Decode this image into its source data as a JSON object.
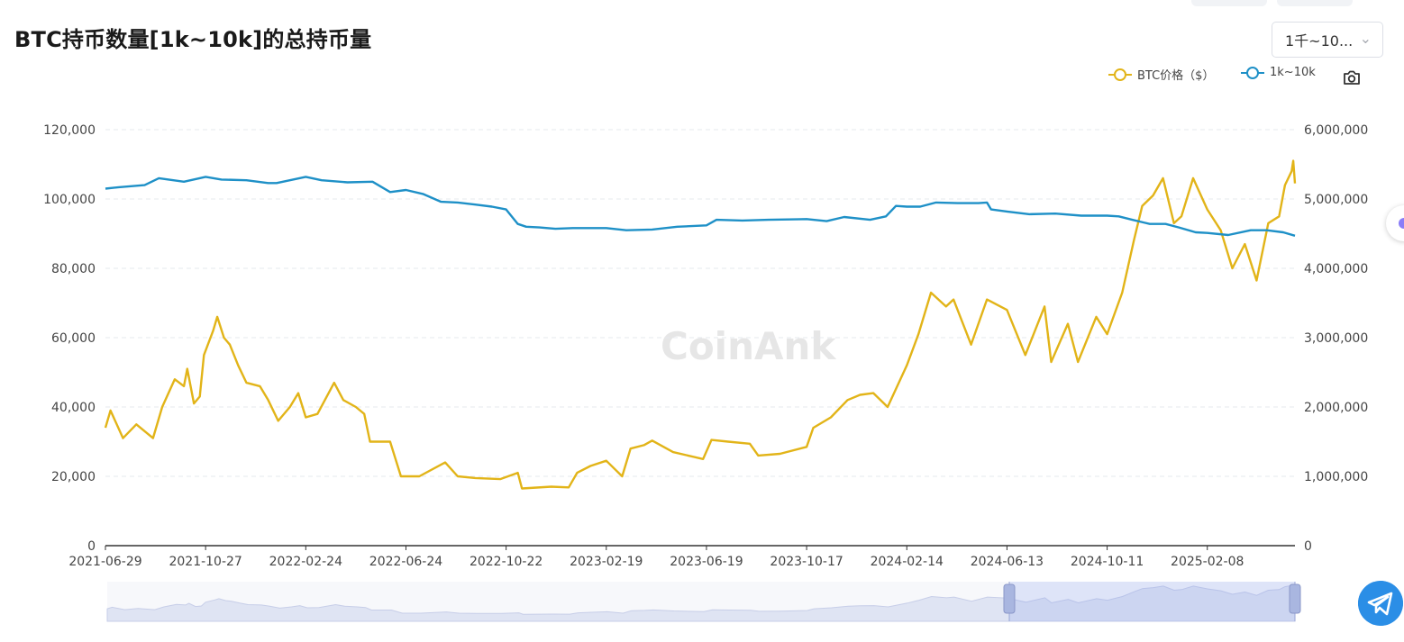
{
  "title": "BTC持币数量[1k~10k]的总持币量",
  "range_select": {
    "value": "1千~10...",
    "icon": "chevron-down-icon"
  },
  "legend": [
    {
      "label": "BTC价格（$）",
      "color": "#e2b418"
    },
    {
      "label": "1k~10k",
      "color": "#1e90c7"
    }
  ],
  "watermark": "CoinAnk",
  "chart_data": {
    "type": "line",
    "x_axis": {
      "type": "date",
      "range": [
        "2021-06-29",
        "2025-05-24"
      ],
      "tick_labels": [
        "2021-06-29",
        "2021-10-27",
        "2022-02-24",
        "2022-06-24",
        "2022-10-22",
        "2023-02-19",
        "2023-06-19",
        "2023-10-17",
        "2024-02-14",
        "2024-06-13",
        "2024-10-11",
        "2025-02-08"
      ]
    },
    "y_left": {
      "range": [
        0,
        120000
      ],
      "tick_labels": [
        "0",
        "20,000",
        "40,000",
        "60,000",
        "80,000",
        "100,000",
        "120,000"
      ]
    },
    "y_right": {
      "range": [
        0,
        6000000
      ],
      "tick_labels": [
        "0",
        "1,000,000",
        "2,000,000",
        "3,000,000",
        "4,000,000",
        "5,000,000",
        "6,000,000"
      ]
    },
    "grid": "horizontal dashed",
    "legend_position": "top-right",
    "series": [
      {
        "name": "BTC价格（$）",
        "axis": "left",
        "color": "#e2b418",
        "points": [
          [
            "2021-06-29",
            34000
          ],
          [
            "2021-07-05",
            39000
          ],
          [
            "2021-07-20",
            31000
          ],
          [
            "2021-08-05",
            35000
          ],
          [
            "2021-08-25",
            31000
          ],
          [
            "2021-09-05",
            40000
          ],
          [
            "2021-09-20",
            48000
          ],
          [
            "2021-10-01",
            46000
          ],
          [
            "2021-10-05",
            51000
          ],
          [
            "2021-10-13",
            41000
          ],
          [
            "2021-10-20",
            43000
          ],
          [
            "2021-10-25",
            55000
          ],
          [
            "2021-11-05",
            62000
          ],
          [
            "2021-11-10",
            66000
          ],
          [
            "2021-11-18",
            60000
          ],
          [
            "2021-11-25",
            58000
          ],
          [
            "2021-12-05",
            52000
          ],
          [
            "2021-12-15",
            47000
          ],
          [
            "2021-12-31",
            46000
          ],
          [
            "2022-01-10",
            42000
          ],
          [
            "2022-01-22",
            36000
          ],
          [
            "2022-02-05",
            40000
          ],
          [
            "2022-02-15",
            44000
          ],
          [
            "2022-02-24",
            37000
          ],
          [
            "2022-03-10",
            38000
          ],
          [
            "2022-03-30",
            47000
          ],
          [
            "2022-04-10",
            42000
          ],
          [
            "2022-04-25",
            40000
          ],
          [
            "2022-05-05",
            38000
          ],
          [
            "2022-05-12",
            30000
          ],
          [
            "2022-06-05",
            30000
          ],
          [
            "2022-06-18",
            20000
          ],
          [
            "2022-07-10",
            20000
          ],
          [
            "2022-08-10",
            24000
          ],
          [
            "2022-08-25",
            20000
          ],
          [
            "2022-09-15",
            19500
          ],
          [
            "2022-10-15",
            19200
          ],
          [
            "2022-11-05",
            21000
          ],
          [
            "2022-11-10",
            16500
          ],
          [
            "2022-12-15",
            17000
          ],
          [
            "2023-01-05",
            16800
          ],
          [
            "2023-01-15",
            21000
          ],
          [
            "2023-01-31",
            23000
          ],
          [
            "2023-02-19",
            24500
          ],
          [
            "2023-03-10",
            20000
          ],
          [
            "2023-03-20",
            28000
          ],
          [
            "2023-04-05",
            29000
          ],
          [
            "2023-04-15",
            30300
          ],
          [
            "2023-05-10",
            27000
          ],
          [
            "2023-06-15",
            25000
          ],
          [
            "2023-06-25",
            30500
          ],
          [
            "2023-07-15",
            30000
          ],
          [
            "2023-08-10",
            29400
          ],
          [
            "2023-08-20",
            26000
          ],
          [
            "2023-09-15",
            26500
          ],
          [
            "2023-10-17",
            28500
          ],
          [
            "2023-10-25",
            34000
          ],
          [
            "2023-11-15",
            37000
          ],
          [
            "2023-12-05",
            42000
          ],
          [
            "2023-12-20",
            43500
          ],
          [
            "2024-01-05",
            44000
          ],
          [
            "2024-01-22",
            40000
          ],
          [
            "2024-02-14",
            52000
          ],
          [
            "2024-02-28",
            61000
          ],
          [
            "2024-03-14",
            73000
          ],
          [
            "2024-04-01",
            69000
          ],
          [
            "2024-04-10",
            71000
          ],
          [
            "2024-05-01",
            58000
          ],
          [
            "2024-05-20",
            71000
          ],
          [
            "2024-06-13",
            68000
          ],
          [
            "2024-07-05",
            55000
          ],
          [
            "2024-07-28",
            69000
          ],
          [
            "2024-08-05",
            53000
          ],
          [
            "2024-08-25",
            64000
          ],
          [
            "2024-09-06",
            53000
          ],
          [
            "2024-09-28",
            66000
          ],
          [
            "2024-10-11",
            61000
          ],
          [
            "2024-10-29",
            73000
          ],
          [
            "2024-11-12",
            88000
          ],
          [
            "2024-11-22",
            98000
          ],
          [
            "2024-12-05",
            101000
          ],
          [
            "2024-12-17",
            106000
          ],
          [
            "2024-12-30",
            93000
          ],
          [
            "2025-01-08",
            95000
          ],
          [
            "2025-01-22",
            106000
          ],
          [
            "2025-02-08",
            97000
          ],
          [
            "2025-02-24",
            91000
          ],
          [
            "2025-03-10",
            80000
          ],
          [
            "2025-03-25",
            87000
          ],
          [
            "2025-04-08",
            76500
          ],
          [
            "2025-04-22",
            93000
          ],
          [
            "2025-05-05",
            95000
          ],
          [
            "2025-05-12",
            104000
          ],
          [
            "2025-05-20",
            108000
          ],
          [
            "2025-05-22",
            111000
          ],
          [
            "2025-05-24",
            104500
          ]
        ]
      },
      {
        "name": "1k~10k",
        "axis": "right",
        "color": "#1e90c7",
        "points": [
          [
            "2021-06-29",
            5150000
          ],
          [
            "2021-07-15",
            5170000
          ],
          [
            "2021-08-15",
            5200000
          ],
          [
            "2021-09-01",
            5300000
          ],
          [
            "2021-10-01",
            5250000
          ],
          [
            "2021-10-27",
            5320000
          ],
          [
            "2021-11-15",
            5280000
          ],
          [
            "2021-12-15",
            5270000
          ],
          [
            "2022-01-10",
            5230000
          ],
          [
            "2022-01-20",
            5230000
          ],
          [
            "2022-02-24",
            5320000
          ],
          [
            "2022-03-15",
            5270000
          ],
          [
            "2022-04-15",
            5240000
          ],
          [
            "2022-05-15",
            5250000
          ],
          [
            "2022-06-05",
            5100000
          ],
          [
            "2022-06-24",
            5130000
          ],
          [
            "2022-07-15",
            5070000
          ],
          [
            "2022-08-05",
            4960000
          ],
          [
            "2022-08-25",
            4950000
          ],
          [
            "2022-09-15",
            4920000
          ],
          [
            "2022-10-05",
            4890000
          ],
          [
            "2022-10-22",
            4850000
          ],
          [
            "2022-11-05",
            4640000
          ],
          [
            "2022-11-15",
            4600000
          ],
          [
            "2022-12-01",
            4590000
          ],
          [
            "2022-12-20",
            4570000
          ],
          [
            "2023-01-10",
            4580000
          ],
          [
            "2023-02-19",
            4580000
          ],
          [
            "2023-03-15",
            4550000
          ],
          [
            "2023-04-15",
            4560000
          ],
          [
            "2023-05-15",
            4600000
          ],
          [
            "2023-06-19",
            4620000
          ],
          [
            "2023-07-01",
            4700000
          ],
          [
            "2023-08-01",
            4690000
          ],
          [
            "2023-09-01",
            4700000
          ],
          [
            "2023-10-17",
            4710000
          ],
          [
            "2023-11-10",
            4680000
          ],
          [
            "2023-12-01",
            4740000
          ],
          [
            "2024-01-01",
            4700000
          ],
          [
            "2024-01-20",
            4750000
          ],
          [
            "2024-02-01",
            4900000
          ],
          [
            "2024-02-14",
            4890000
          ],
          [
            "2024-03-01",
            4890000
          ],
          [
            "2024-03-20",
            4950000
          ],
          [
            "2024-04-15",
            4940000
          ],
          [
            "2024-05-10",
            4940000
          ],
          [
            "2024-05-20",
            4950000
          ],
          [
            "2024-05-25",
            4850000
          ],
          [
            "2024-06-13",
            4820000
          ],
          [
            "2024-07-10",
            4780000
          ],
          [
            "2024-08-10",
            4790000
          ],
          [
            "2024-09-10",
            4760000
          ],
          [
            "2024-10-11",
            4760000
          ],
          [
            "2024-10-25",
            4750000
          ],
          [
            "2024-11-10",
            4700000
          ],
          [
            "2024-12-01",
            4640000
          ],
          [
            "2024-12-20",
            4640000
          ],
          [
            "2025-01-05",
            4590000
          ],
          [
            "2025-01-25",
            4520000
          ],
          [
            "2025-02-08",
            4510000
          ],
          [
            "2025-03-05",
            4480000
          ],
          [
            "2025-04-01",
            4550000
          ],
          [
            "2025-04-20",
            4550000
          ],
          [
            "2025-05-10",
            4520000
          ],
          [
            "2025-05-24",
            4470000
          ]
        ]
      }
    ]
  }
}
